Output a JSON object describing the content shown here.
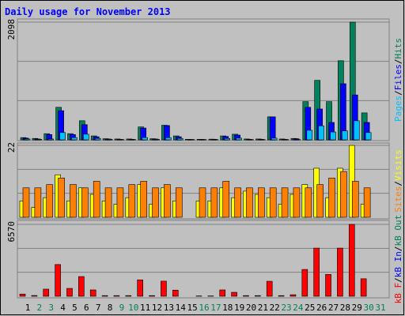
{
  "chart_data": [
    {
      "type": "bar",
      "title": "Daily usage for November 2013",
      "ylim": [
        0,
        2098
      ],
      "yticks": [
        2098
      ],
      "grid": true,
      "legend_separator": "/",
      "series": [
        {
          "name": "Hits",
          "color": "#00805c",
          "values": [
            40,
            25,
            110,
            580,
            110,
            340,
            70,
            20,
            15,
            15,
            230,
            20,
            260,
            70,
            10,
            10,
            12,
            70,
            100,
            15,
            15,
            410,
            15,
            25,
            680,
            1060,
            680,
            1410,
            2098,
            480,
            0
          ]
        },
        {
          "name": "Files",
          "color": "#0000ff",
          "values": [
            30,
            15,
            95,
            520,
            95,
            270,
            55,
            15,
            10,
            10,
            210,
            15,
            255,
            55,
            8,
            8,
            10,
            60,
            85,
            10,
            10,
            410,
            10,
            20,
            580,
            550,
            310,
            1000,
            800,
            310,
            0
          ]
        },
        {
          "name": "Pages",
          "color": "#00c0ff",
          "values": [
            15,
            10,
            15,
            130,
            40,
            100,
            25,
            10,
            5,
            5,
            40,
            10,
            40,
            25,
            5,
            5,
            5,
            25,
            30,
            5,
            5,
            30,
            5,
            5,
            170,
            250,
            140,
            160,
            340,
            130,
            0
          ]
        }
      ]
    },
    {
      "type": "bar",
      "ylim": [
        0,
        22
      ],
      "yticks": [
        22
      ],
      "grid": true,
      "legend_separator": "/",
      "series": [
        {
          "name": "Visits",
          "color": "#ffff00",
          "values": [
            5,
            3,
            6,
            13,
            5,
            9,
            7,
            5,
            4,
            6,
            10,
            4,
            9,
            5,
            0,
            5,
            5,
            9,
            6,
            8,
            7,
            6,
            4,
            7,
            10,
            15,
            6,
            15,
            22,
            4,
            0
          ]
        },
        {
          "name": "Sites",
          "color": "#ff8000",
          "values": [
            9,
            9,
            10,
            12,
            10,
            9,
            11,
            9,
            9,
            10,
            11,
            9,
            10,
            9,
            0,
            9,
            9,
            11,
            9,
            9,
            9,
            9,
            9,
            9,
            9,
            10,
            12,
            14,
            11,
            9,
            0
          ]
        }
      ]
    },
    {
      "type": "bar",
      "ylim": [
        0,
        6570
      ],
      "yticks": [
        6570
      ],
      "grid": true,
      "legend_separator": "/",
      "categories": [
        "1",
        "2",
        "3",
        "4",
        "5",
        "6",
        "7",
        "8",
        "9",
        "10",
        "11",
        "12",
        "13",
        "14",
        "15",
        "16",
        "17",
        "18",
        "19",
        "20",
        "21",
        "22",
        "23",
        "24",
        "25",
        "26",
        "27",
        "28",
        "29",
        "30",
        "31"
      ],
      "category_colors": [
        "#000000",
        "#00805c",
        "#00805c",
        "#000000",
        "#000000",
        "#000000",
        "#000000",
        "#000000",
        "#00805c",
        "#00805c",
        "#000000",
        "#000000",
        "#000000",
        "#000000",
        "#000000",
        "#00805c",
        "#00805c",
        "#000000",
        "#000000",
        "#000000",
        "#000000",
        "#000000",
        "#00805c",
        "#00805c",
        "#000000",
        "#000000",
        "#000000",
        "#000000",
        "#000000",
        "#00805c",
        "#00805c"
      ],
      "series": [
        {
          "name": "kB F",
          "color": "#ff0000",
          "values": [
            200,
            70,
            650,
            2900,
            720,
            1800,
            580,
            60,
            60,
            60,
            1500,
            60,
            1380,
            560,
            0,
            30,
            30,
            580,
            360,
            60,
            60,
            1370,
            60,
            140,
            2450,
            4400,
            2000,
            4400,
            6570,
            1600,
            0
          ]
        }
      ],
      "extra_legend": [
        {
          "name": "kB In",
          "color": "#0000ff"
        },
        {
          "name": "kB Out",
          "color": "#00805c"
        }
      ]
    }
  ]
}
